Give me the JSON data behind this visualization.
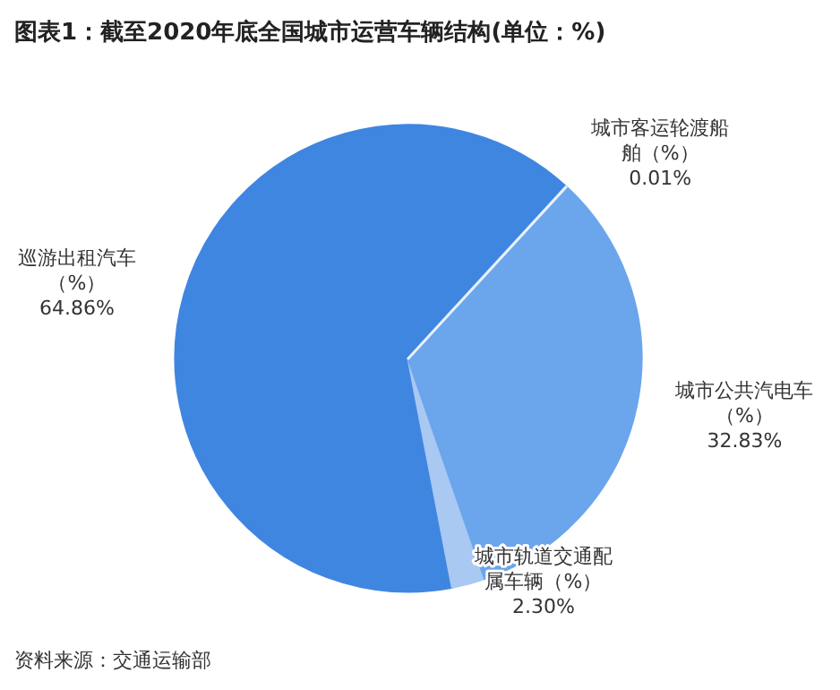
{
  "chart_data": {
    "type": "pie",
    "title": "图表1：截至2020年底全国城市运营车辆结构(单位：%)",
    "categories": [
      "城市客运轮渡船舶（%）",
      "城市公共汽电车（%）",
      "城市轨道交通配属车辆（%）",
      "巡游出租汽车（%）"
    ],
    "values": [
      0.01,
      32.83,
      2.3,
      64.86
    ],
    "value_labels": [
      "0.01%",
      "32.83%",
      "2.30%",
      "64.86%"
    ],
    "colors": [
      "#e8f0fb",
      "#6ba5ec",
      "#a9c8f2",
      "#3f86e1"
    ],
    "annotations": [
      "资料来源：交通运输部"
    ]
  }
}
